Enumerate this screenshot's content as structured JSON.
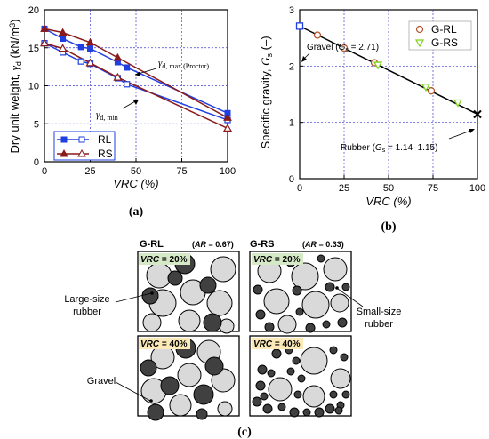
{
  "chart_data": [
    {
      "type": "line",
      "panel_label": "(a)",
      "xlabel": "VRC (%)",
      "ylabel_text": "Dry unit weight, ",
      "ylabel_symbol": "γ",
      "ylabel_sub": "d",
      "ylabel_unit": " (kN/m",
      "ylabel_sup": "3",
      "ylabel_close": ")",
      "xlim": [
        0,
        100
      ],
      "ylim": [
        0,
        20
      ],
      "xticks": [
        "0",
        "25",
        "50",
        "75",
        "100"
      ],
      "yticks": [
        "0",
        "5",
        "10",
        "15",
        "20"
      ],
      "grid": true,
      "series": [
        {
          "name": "RL",
          "kind": "max",
          "color": "#1f3fe0",
          "marker": "square-filled",
          "x": [
            0,
            10,
            20,
            25,
            40,
            45,
            100
          ],
          "y": [
            17.5,
            16.2,
            15.1,
            14.9,
            13.1,
            12.4,
            6.4
          ]
        },
        {
          "name": "RL",
          "kind": "min",
          "color": "#1f3fe0",
          "marker": "square-open",
          "x": [
            0,
            10,
            20,
            25,
            40,
            45,
            100
          ],
          "y": [
            15.6,
            14.4,
            13.2,
            12.9,
            11.0,
            10.2,
            5.5
          ]
        },
        {
          "name": "RS",
          "kind": "max",
          "color": "#8b1a1a",
          "marker": "triangle-filled",
          "x": [
            0,
            10,
            25,
            40,
            100
          ],
          "y": [
            17.5,
            17.0,
            15.7,
            13.7,
            5.8
          ]
        },
        {
          "name": "RS",
          "kind": "min",
          "color": "#8b1a1a",
          "marker": "triangle-open",
          "x": [
            0,
            10,
            25,
            40,
            100
          ],
          "y": [
            15.6,
            14.9,
            13.0,
            11.1,
            4.4
          ]
        }
      ],
      "legend": {
        "placement": "bottom-left",
        "entries": [
          "RL",
          "RS"
        ]
      },
      "annotations": {
        "max_symbol": "γ",
        "max_sub": "d, max (Proctor)",
        "min_symbol": "γ",
        "min_sub": "d, min"
      }
    },
    {
      "type": "line",
      "panel_label": "(b)",
      "xlabel": "VRC (%)",
      "ylabel_text": "Specific gravity, ",
      "ylabel_symbol": "G",
      "ylabel_sub": "s",
      "ylabel_close": " (–)",
      "xlim": [
        0,
        100
      ],
      "ylim": [
        0,
        3
      ],
      "xticks": [
        "0",
        "25",
        "50",
        "75",
        "100"
      ],
      "yticks": [
        "0",
        "1",
        "2",
        "3"
      ],
      "grid": true,
      "trend_line": {
        "x": [
          0,
          100
        ],
        "y": [
          2.71,
          1.145
        ]
      },
      "endpoints": [
        {
          "x": 0,
          "y": 2.71,
          "marker": "square-open-blue"
        },
        {
          "x": 100,
          "y": 1.145,
          "marker": "x-black"
        }
      ],
      "series": [
        {
          "name": "G-RL",
          "color": "#b5532b",
          "marker": "circle-open",
          "x": [
            10,
            25,
            42,
            74
          ],
          "y": [
            2.55,
            2.32,
            2.06,
            1.56
          ]
        },
        {
          "name": "G-RS",
          "color": "#7fd11b",
          "marker": "triangle-down-open",
          "x": [
            44,
            71,
            89
          ],
          "y": [
            2.02,
            1.63,
            1.35
          ]
        }
      ],
      "legend": {
        "placement": "top-right",
        "entries": [
          "G-RL",
          "G-RS"
        ]
      },
      "annotations": {
        "gravel": {
          "pre": "Gravel (",
          "sym": "G",
          "sub": "s",
          "post": " = 2.71)"
        },
        "rubber": {
          "pre": "Rubber (",
          "sym": "G",
          "sub": "s",
          "post": " = 1.14–1.15)"
        }
      }
    }
  ],
  "panel_c": {
    "label": "(c)",
    "left_title": "G-RL",
    "left_ar_open": "(",
    "left_ar_sym": "AR",
    "left_ar_val": " = 0.67)",
    "right_title": "G-RS",
    "right_ar_open": "(",
    "right_ar_sym": "AR",
    "right_ar_val": " = 0.33)",
    "vrc20_sym": "VRC",
    "vrc20_val": " = 20%",
    "vrc40_sym": "VRC",
    "vrc40_val": " = 40%",
    "large_rubber_line1": "Large-size",
    "large_rubber_line2": "rubber",
    "small_rubber_line1": "Small-size",
    "small_rubber_line2": "rubber",
    "gravel_label": "Gravel",
    "colors": {
      "gravel": "#d9d9d9",
      "rubber": "#404040"
    }
  }
}
